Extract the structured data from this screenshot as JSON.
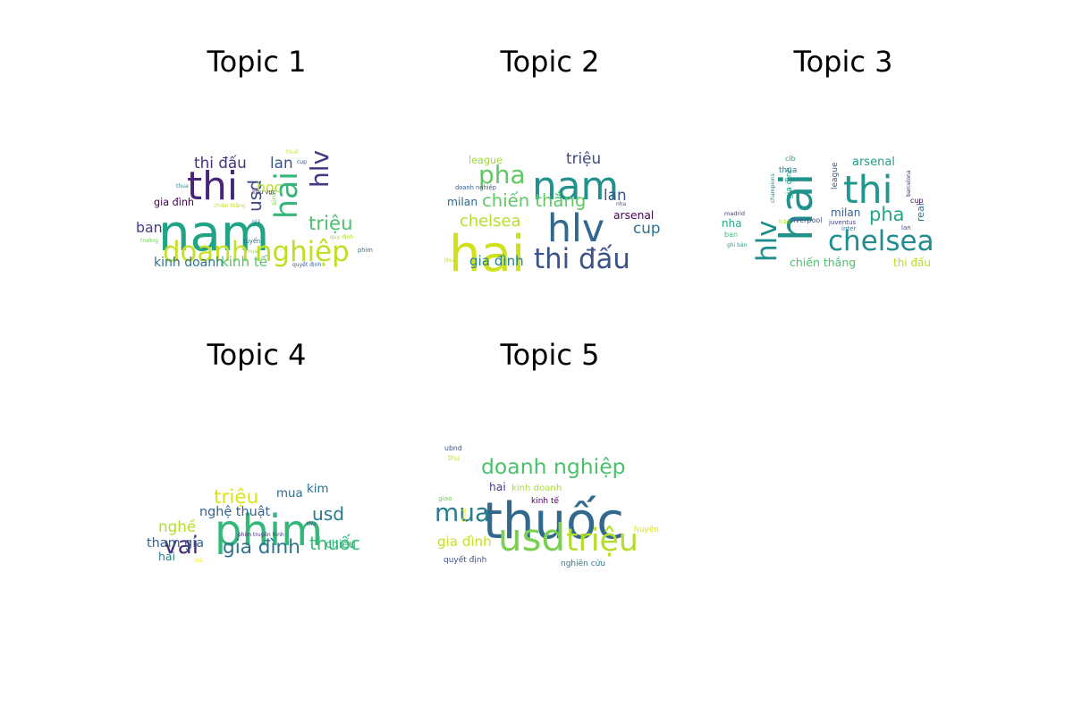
{
  "chart_data": [
    {
      "type": "wordcloud",
      "title": "Topic 1",
      "words": [
        {
          "text": "nam",
          "weight": 1.0,
          "color": "#21a386",
          "orient": "h"
        },
        {
          "text": "thi",
          "weight": 0.78,
          "color": "#482677",
          "orient": "h"
        },
        {
          "text": "hai",
          "weight": 0.62,
          "color": "#35b779",
          "orient": "v"
        },
        {
          "text": "doanh",
          "weight": 0.55,
          "color": "#c8df27",
          "orient": "h"
        },
        {
          "text": "nghiệp",
          "weight": 0.55,
          "color": "#bddf26",
          "orient": "h"
        },
        {
          "text": "hlv",
          "weight": 0.5,
          "color": "#453882",
          "orient": "v"
        },
        {
          "text": "triệu",
          "weight": 0.38,
          "color": "#4ac16d",
          "orient": "h"
        },
        {
          "text": "usd",
          "weight": 0.36,
          "color": "#3e4c8a",
          "orient": "v"
        },
        {
          "text": "thi đấu",
          "weight": 0.3,
          "color": "#46327e",
          "orient": "h"
        },
        {
          "text": "lan",
          "weight": 0.3,
          "color": "#3b528b",
          "orient": "h"
        },
        {
          "text": "học",
          "weight": 0.28,
          "color": "#b5de2b",
          "orient": "h"
        },
        {
          "text": "ban",
          "weight": 0.28,
          "color": "#433e85",
          "orient": "h"
        },
        {
          "text": "kinh doanh",
          "weight": 0.25,
          "color": "#2a768e",
          "orient": "h"
        },
        {
          "text": "kinh tế",
          "weight": 0.27,
          "color": "#52c569",
          "orient": "h"
        },
        {
          "text": "gia đình",
          "weight": 0.2,
          "color": "#440154",
          "orient": "h"
        },
        {
          "text": "sinh",
          "weight": 0.14,
          "color": "#7ad151",
          "orient": "v"
        },
        {
          "text": "khu vực",
          "weight": 0.12,
          "color": "#472c7a",
          "orient": "h"
        },
        {
          "text": "tuyển",
          "weight": 0.12,
          "color": "#31688e",
          "orient": "h"
        },
        {
          "text": "phim",
          "weight": 0.12,
          "color": "#2c728e",
          "orient": "h"
        },
        {
          "text": "quy định",
          "weight": 0.1,
          "color": "#a8db34",
          "orient": "h"
        },
        {
          "text": "quyết định",
          "weight": 0.1,
          "color": "#365d8d",
          "orient": "h"
        },
        {
          "text": "chiến thắng",
          "weight": 0.09,
          "color": "#c2df23",
          "orient": "h"
        },
        {
          "text": "thuế",
          "weight": 0.1,
          "color": "#d2e21b",
          "orient": "h"
        },
        {
          "text": "cup",
          "weight": 0.1,
          "color": "#3d4e8a",
          "orient": "h"
        },
        {
          "text": "thua",
          "weight": 0.09,
          "color": "#25838e",
          "orient": "h"
        },
        {
          "text": "trường",
          "weight": 0.08,
          "color": "#6ece58",
          "orient": "h"
        },
        {
          "text": "mua",
          "weight": 0.08,
          "color": "#a0da39",
          "orient": "h"
        },
        {
          "text": "giá",
          "weight": 0.08,
          "color": "#287c8e",
          "orient": "h"
        }
      ]
    },
    {
      "type": "wordcloud",
      "title": "Topic 2",
      "words": [
        {
          "text": "hai",
          "weight": 1.0,
          "color": "#d0e11c",
          "orient": "h"
        },
        {
          "text": "nam",
          "weight": 0.78,
          "color": "#21918c",
          "orient": "h"
        },
        {
          "text": "hlv",
          "weight": 0.76,
          "color": "#31688e",
          "orient": "h"
        },
        {
          "text": "thi đấu",
          "weight": 0.55,
          "color": "#3b528b",
          "orient": "h"
        },
        {
          "text": "pha",
          "weight": 0.5,
          "color": "#5ec962",
          "orient": "h"
        },
        {
          "text": "chiến thắng",
          "weight": 0.35,
          "color": "#5ec962",
          "orient": "h"
        },
        {
          "text": "chelsea",
          "weight": 0.32,
          "color": "#b5de2b",
          "orient": "h"
        },
        {
          "text": "triệu",
          "weight": 0.3,
          "color": "#3e4a89",
          "orient": "h"
        },
        {
          "text": "lan",
          "weight": 0.3,
          "color": "#3b528b",
          "orient": "h"
        },
        {
          "text": "cup",
          "weight": 0.3,
          "color": "#2c728e",
          "orient": "h"
        },
        {
          "text": "gia đình",
          "weight": 0.27,
          "color": "#26828e",
          "orient": "h"
        },
        {
          "text": "milan",
          "weight": 0.22,
          "color": "#31688e",
          "orient": "h"
        },
        {
          "text": "arsenal",
          "weight": 0.22,
          "color": "#440154",
          "orient": "h"
        },
        {
          "text": "league",
          "weight": 0.2,
          "color": "#9fda3a",
          "orient": "h"
        },
        {
          "text": "doanh nghiệp",
          "weight": 0.12,
          "color": "#365d8d",
          "orient": "h"
        },
        {
          "text": "nha",
          "weight": 0.1,
          "color": "#3b528b",
          "orient": "h"
        },
        {
          "text": "thua",
          "weight": 0.09,
          "color": "#bddf26",
          "orient": "h"
        }
      ]
    },
    {
      "type": "wordcloud",
      "title": "Topic 3",
      "words": [
        {
          "text": "hai",
          "weight": 1.0,
          "color": "#21918c",
          "orient": "v"
        },
        {
          "text": "thi",
          "weight": 0.85,
          "color": "#1f988b",
          "orient": "h"
        },
        {
          "text": "chelsea",
          "weight": 0.62,
          "color": "#218e8d",
          "orient": "h"
        },
        {
          "text": "hlv",
          "weight": 0.62,
          "color": "#1f8f8d",
          "orient": "v"
        },
        {
          "text": "pha",
          "weight": 0.42,
          "color": "#22a785",
          "orient": "h"
        },
        {
          "text": "arsenal",
          "weight": 0.26,
          "color": "#1f9e89",
          "orient": "h"
        },
        {
          "text": "chiến thắng",
          "weight": 0.25,
          "color": "#4ac16d",
          "orient": "h"
        },
        {
          "text": "thi đấu",
          "weight": 0.24,
          "color": "#b8de29",
          "orient": "h"
        },
        {
          "text": "milan",
          "weight": 0.24,
          "color": "#355f8d",
          "orient": "h"
        },
        {
          "text": "nha",
          "weight": 0.24,
          "color": "#22a884",
          "orient": "h"
        },
        {
          "text": "real",
          "weight": 0.22,
          "color": "#2d718e",
          "orient": "v"
        },
        {
          "text": "gia đình",
          "weight": 0.18,
          "color": "#1fa188",
          "orient": "v"
        },
        {
          "text": "league",
          "weight": 0.18,
          "color": "#365c8d",
          "orient": "v"
        },
        {
          "text": "liverpool",
          "weight": 0.16,
          "color": "#3b528b",
          "orient": "h"
        },
        {
          "text": "thua",
          "weight": 0.18,
          "color": "#2a788e",
          "orient": "h"
        },
        {
          "text": "clb",
          "weight": 0.16,
          "color": "#20a486",
          "orient": "h"
        },
        {
          "text": "cup",
          "weight": 0.16,
          "color": "#440154",
          "orient": "h"
        },
        {
          "text": "ban",
          "weight": 0.16,
          "color": "#3aba76",
          "orient": "h"
        },
        {
          "text": "lan",
          "weight": 0.14,
          "color": "#3e4a89",
          "orient": "h"
        },
        {
          "text": "inter",
          "weight": 0.14,
          "color": "#26828e",
          "orient": "h"
        },
        {
          "text": "juventus",
          "weight": 0.14,
          "color": "#433e85",
          "orient": "h"
        },
        {
          "text": "madrid",
          "weight": 0.13,
          "color": "#443a83",
          "orient": "h"
        },
        {
          "text": "champions",
          "weight": 0.12,
          "color": "#27808e",
          "orient": "v"
        },
        {
          "text": "barcelona",
          "weight": 0.12,
          "color": "#482475",
          "orient": "v"
        },
        {
          "text": "ghi bàn",
          "weight": 0.12,
          "color": "#1e9c89",
          "orient": "h"
        },
        {
          "text": "trận",
          "weight": 0.1,
          "color": "#addc30",
          "orient": "h"
        }
      ]
    },
    {
      "type": "wordcloud",
      "title": "Topic 4",
      "words": [
        {
          "text": "phim",
          "weight": 1.0,
          "color": "#35b779",
          "orient": "h"
        },
        {
          "text": "vai",
          "weight": 0.55,
          "color": "#472d7b",
          "orient": "h"
        },
        {
          "text": "gia đình",
          "weight": 0.45,
          "color": "#2c728e",
          "orient": "h"
        },
        {
          "text": "triệu",
          "weight": 0.45,
          "color": "#dde318",
          "orient": "h"
        },
        {
          "text": "usd",
          "weight": 0.42,
          "color": "#287c8e",
          "orient": "h"
        },
        {
          "text": "thuốc",
          "weight": 0.42,
          "color": "#3aba76",
          "orient": "h"
        },
        {
          "text": "nghề",
          "weight": 0.35,
          "color": "#b5de2b",
          "orient": "h"
        },
        {
          "text": "nghệ thuật",
          "weight": 0.3,
          "color": "#33638d",
          "orient": "h"
        },
        {
          "text": "tham gia",
          "weight": 0.3,
          "color": "#33638d",
          "orient": "h"
        },
        {
          "text": "mua",
          "weight": 0.28,
          "color": "#31688e",
          "orient": "h"
        },
        {
          "text": "kim",
          "weight": 0.28,
          "color": "#2d718e",
          "orient": "h"
        },
        {
          "text": "chiếu",
          "weight": 0.26,
          "color": "#2fb47c",
          "orient": "h"
        },
        {
          "text": "hai",
          "weight": 0.26,
          "color": "#26828e",
          "orient": "h"
        },
        {
          "text": "phim truyền hình",
          "weight": 0.12,
          "color": "#482878",
          "orient": "h"
        },
        {
          "text": "thu",
          "weight": 0.1,
          "color": "#3b528b",
          "orient": "h"
        },
        {
          "text": "thế",
          "weight": 0.09,
          "color": "#fde725",
          "orient": "h"
        }
      ]
    },
    {
      "type": "wordcloud",
      "title": "Topic 5",
      "words": [
        {
          "text": "thuốc",
          "weight": 1.0,
          "color": "#31688e",
          "orient": "h"
        },
        {
          "text": "usd",
          "weight": 0.75,
          "color": "#7ad151",
          "orient": "h"
        },
        {
          "text": "triệu",
          "weight": 0.62,
          "color": "#b5de2b",
          "orient": "h"
        },
        {
          "text": "mua",
          "weight": 0.5,
          "color": "#287d8e",
          "orient": "h"
        },
        {
          "text": "doanh nghiệp",
          "weight": 0.42,
          "color": "#4ac16d",
          "orient": "h"
        },
        {
          "text": "gia đình",
          "weight": 0.27,
          "color": "#c8df27",
          "orient": "h"
        },
        {
          "text": "hai",
          "weight": 0.22,
          "color": "#433e85",
          "orient": "h"
        },
        {
          "text": "kinh doanh",
          "weight": 0.18,
          "color": "#a8db34",
          "orient": "h"
        },
        {
          "text": "kinh tế",
          "weight": 0.16,
          "color": "#440154",
          "orient": "h"
        },
        {
          "text": "quyết định",
          "weight": 0.16,
          "color": "#3b528b",
          "orient": "h"
        },
        {
          "text": "nghiên cứu",
          "weight": 0.16,
          "color": "#2a788e",
          "orient": "h"
        },
        {
          "text": "huyện",
          "weight": 0.16,
          "color": "#dde318",
          "orient": "h"
        },
        {
          "text": "ubnd",
          "weight": 0.14,
          "color": "#3b528b",
          "orient": "h"
        },
        {
          "text": "thu",
          "weight": 0.14,
          "color": "#c2df23",
          "orient": "h"
        },
        {
          "text": "giao",
          "weight": 0.13,
          "color": "#7ad151",
          "orient": "h"
        },
        {
          "text": "thuế",
          "weight": 0.12,
          "color": "#d8e219",
          "orient": "v"
        }
      ]
    }
  ]
}
